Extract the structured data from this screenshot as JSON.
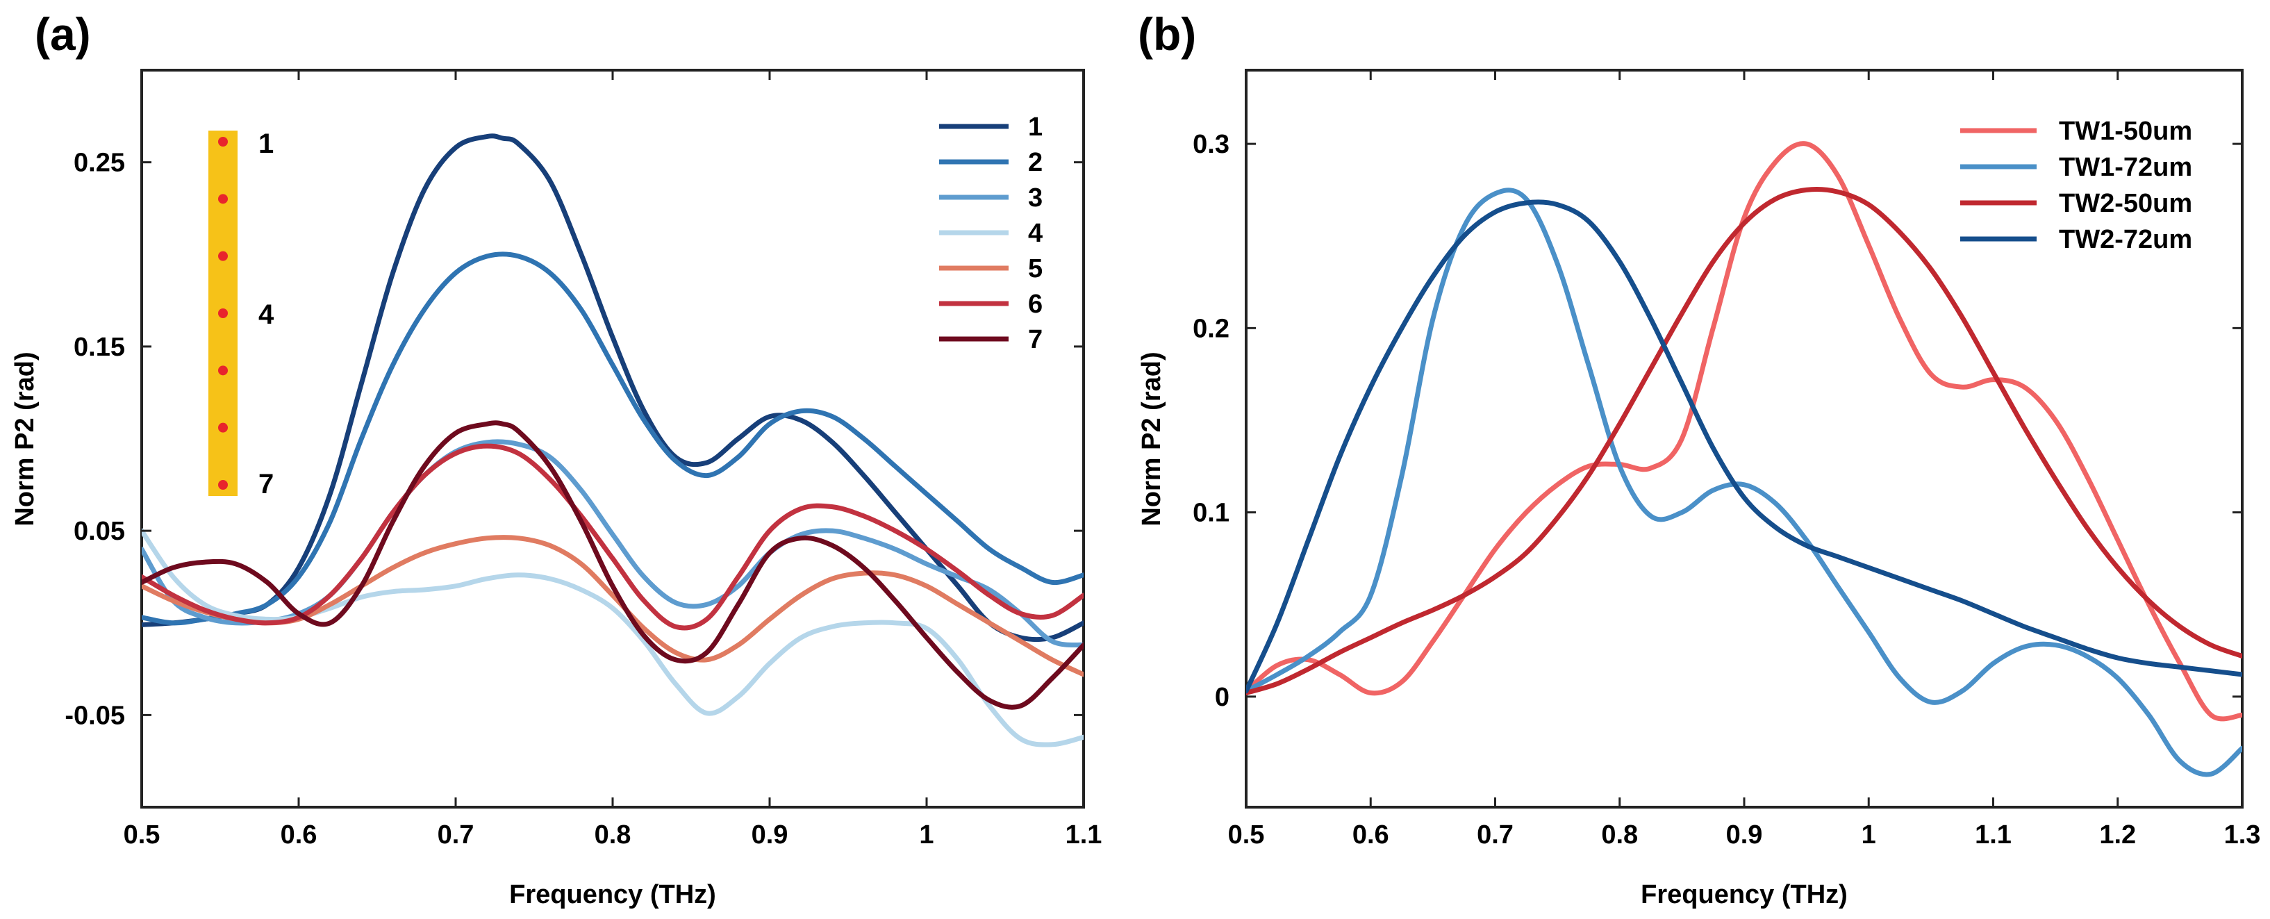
{
  "panels": [
    {
      "label": "(a)"
    },
    {
      "label": "(b)"
    }
  ],
  "chart_data": [
    {
      "type": "line",
      "xlabel": "Frequency (THz)",
      "ylabel": "Norm P2 (rad)",
      "xlim": [
        0.5,
        1.1
      ],
      "ylim": [
        -0.1,
        0.3
      ],
      "xticks": [
        "0.5",
        "0.6",
        "0.7",
        "0.8",
        "0.9",
        "1",
        "1.1"
      ],
      "yticks": [
        "-0.05",
        "0.05",
        "0.15",
        "0.25"
      ],
      "legend_position": "top-right",
      "inset": {
        "description_color": "#F6C218",
        "dot_color": "#E8242C",
        "dot_count": 7,
        "labels": [
          "1",
          "4",
          "7"
        ]
      },
      "series": [
        {
          "name": "1",
          "color": "#173F79",
          "x": [
            0.5,
            0.52,
            0.54,
            0.56,
            0.58,
            0.6,
            0.62,
            0.64,
            0.66,
            0.68,
            0.7,
            0.72,
            0.73,
            0.74,
            0.76,
            0.78,
            0.8,
            0.82,
            0.84,
            0.86,
            0.88,
            0.9,
            0.92,
            0.94,
            0.96,
            0.98,
            1.0,
            1.02,
            1.04,
            1.06,
            1.08,
            1.1
          ],
          "y": [
            -0.001,
            0.0,
            0.002,
            0.005,
            0.01,
            0.03,
            0.07,
            0.13,
            0.19,
            0.235,
            0.258,
            0.264,
            0.263,
            0.26,
            0.24,
            0.2,
            0.155,
            0.115,
            0.09,
            0.087,
            0.1,
            0.112,
            0.11,
            0.098,
            0.08,
            0.06,
            0.04,
            0.02,
            0.0,
            -0.008,
            -0.008,
            0.0
          ]
        },
        {
          "name": "2",
          "color": "#2F74B2",
          "x": [
            0.5,
            0.52,
            0.54,
            0.56,
            0.58,
            0.6,
            0.62,
            0.64,
            0.66,
            0.68,
            0.7,
            0.72,
            0.74,
            0.76,
            0.78,
            0.8,
            0.82,
            0.84,
            0.86,
            0.88,
            0.9,
            0.92,
            0.94,
            0.96,
            0.98,
            1.0,
            1.02,
            1.04,
            1.06,
            1.08,
            1.1
          ],
          "y": [
            0.003,
            0.0,
            0.002,
            0.005,
            0.01,
            0.025,
            0.055,
            0.1,
            0.14,
            0.17,
            0.19,
            0.199,
            0.199,
            0.19,
            0.17,
            0.14,
            0.11,
            0.088,
            0.08,
            0.09,
            0.108,
            0.115,
            0.112,
            0.1,
            0.085,
            0.07,
            0.055,
            0.04,
            0.03,
            0.022,
            0.026
          ]
        },
        {
          "name": "3",
          "color": "#5E9CCF",
          "x": [
            0.5,
            0.52,
            0.54,
            0.56,
            0.58,
            0.6,
            0.62,
            0.64,
            0.66,
            0.68,
            0.7,
            0.72,
            0.74,
            0.76,
            0.78,
            0.8,
            0.82,
            0.84,
            0.86,
            0.88,
            0.9,
            0.92,
            0.94,
            0.96,
            0.98,
            1.0,
            1.02,
            1.04,
            1.06,
            1.08,
            1.1
          ],
          "y": [
            0.04,
            0.012,
            0.003,
            0.0,
            0.001,
            0.005,
            0.015,
            0.035,
            0.06,
            0.08,
            0.093,
            0.098,
            0.097,
            0.09,
            0.072,
            0.048,
            0.025,
            0.011,
            0.01,
            0.02,
            0.038,
            0.048,
            0.05,
            0.046,
            0.04,
            0.032,
            0.025,
            0.018,
            0.005,
            -0.01,
            -0.012
          ]
        },
        {
          "name": "4",
          "color": "#B5D6EA",
          "x": [
            0.5,
            0.52,
            0.54,
            0.56,
            0.58,
            0.6,
            0.62,
            0.64,
            0.66,
            0.68,
            0.7,
            0.72,
            0.74,
            0.76,
            0.78,
            0.8,
            0.82,
            0.84,
            0.86,
            0.88,
            0.9,
            0.92,
            0.94,
            0.96,
            0.98,
            1.0,
            1.02,
            1.04,
            1.06,
            1.08,
            1.1
          ],
          "y": [
            0.05,
            0.025,
            0.01,
            0.004,
            0.002,
            0.003,
            0.008,
            0.014,
            0.017,
            0.018,
            0.02,
            0.024,
            0.026,
            0.024,
            0.018,
            0.008,
            -0.01,
            -0.033,
            -0.049,
            -0.04,
            -0.022,
            -0.008,
            -0.002,
            0.0,
            0.0,
            -0.003,
            -0.02,
            -0.045,
            -0.063,
            -0.066,
            -0.062
          ]
        },
        {
          "name": "5",
          "color": "#E07B61",
          "x": [
            0.5,
            0.52,
            0.54,
            0.56,
            0.58,
            0.6,
            0.62,
            0.64,
            0.66,
            0.68,
            0.7,
            0.72,
            0.74,
            0.76,
            0.78,
            0.8,
            0.82,
            0.84,
            0.86,
            0.88,
            0.9,
            0.92,
            0.94,
            0.96,
            0.98,
            1.0,
            1.02,
            1.04,
            1.06,
            1.08,
            1.1
          ],
          "y": [
            0.02,
            0.012,
            0.006,
            0.002,
            0.0,
            0.002,
            0.01,
            0.02,
            0.03,
            0.038,
            0.043,
            0.046,
            0.046,
            0.042,
            0.032,
            0.015,
            -0.003,
            -0.016,
            -0.02,
            -0.012,
            0.002,
            0.015,
            0.024,
            0.027,
            0.026,
            0.02,
            0.01,
            0.0,
            -0.01,
            -0.02,
            -0.028
          ]
        },
        {
          "name": "6",
          "color": "#C23240",
          "x": [
            0.5,
            0.52,
            0.54,
            0.56,
            0.58,
            0.6,
            0.62,
            0.64,
            0.66,
            0.68,
            0.7,
            0.72,
            0.74,
            0.76,
            0.78,
            0.8,
            0.82,
            0.84,
            0.86,
            0.88,
            0.9,
            0.92,
            0.94,
            0.96,
            0.98,
            1.0,
            1.02,
            1.04,
            1.06,
            1.08,
            1.1
          ],
          "y": [
            0.025,
            0.015,
            0.007,
            0.002,
            0.0,
            0.003,
            0.015,
            0.035,
            0.06,
            0.08,
            0.092,
            0.096,
            0.092,
            0.078,
            0.058,
            0.035,
            0.012,
            -0.002,
            0.002,
            0.025,
            0.05,
            0.062,
            0.063,
            0.058,
            0.05,
            0.04,
            0.028,
            0.015,
            0.005,
            0.004,
            0.015
          ]
        },
        {
          "name": "7",
          "color": "#6E0A1E",
          "x": [
            0.5,
            0.52,
            0.54,
            0.56,
            0.58,
            0.6,
            0.62,
            0.64,
            0.66,
            0.68,
            0.7,
            0.72,
            0.73,
            0.74,
            0.76,
            0.78,
            0.8,
            0.82,
            0.84,
            0.86,
            0.88,
            0.9,
            0.92,
            0.94,
            0.96,
            0.98,
            1.0,
            1.02,
            1.04,
            1.06,
            1.08,
            1.1
          ],
          "y": [
            0.022,
            0.03,
            0.033,
            0.032,
            0.022,
            0.005,
            0.0,
            0.02,
            0.055,
            0.085,
            0.103,
            0.108,
            0.108,
            0.104,
            0.085,
            0.055,
            0.02,
            -0.007,
            -0.02,
            -0.016,
            0.01,
            0.038,
            0.046,
            0.042,
            0.03,
            0.012,
            -0.008,
            -0.027,
            -0.042,
            -0.045,
            -0.03,
            -0.012
          ]
        }
      ]
    },
    {
      "type": "line",
      "xlabel": "Frequency (THz)",
      "ylabel": "Norm P2 (rad)",
      "xlim": [
        0.5,
        1.3
      ],
      "ylim": [
        -0.06,
        0.34
      ],
      "xticks": [
        "0.5",
        "0.6",
        "0.7",
        "0.8",
        "0.9",
        "1",
        "1.1",
        "1.2",
        "1.3"
      ],
      "yticks": [
        "0",
        "0.1",
        "0.2",
        "0.3"
      ],
      "legend_position": "top-right",
      "series": [
        {
          "name": "TW1-50um",
          "color": "#F06464",
          "x": [
            0.5,
            0.525,
            0.55,
            0.575,
            0.6,
            0.625,
            0.65,
            0.675,
            0.7,
            0.725,
            0.75,
            0.775,
            0.8,
            0.825,
            0.85,
            0.875,
            0.9,
            0.925,
            0.95,
            0.975,
            1.0,
            1.025,
            1.05,
            1.075,
            1.1,
            1.125,
            1.15,
            1.175,
            1.2,
            1.225,
            1.25,
            1.275,
            1.3
          ],
          "y": [
            0.003,
            0.017,
            0.02,
            0.012,
            0.002,
            0.008,
            0.03,
            0.055,
            0.08,
            0.1,
            0.115,
            0.125,
            0.126,
            0.124,
            0.14,
            0.2,
            0.26,
            0.29,
            0.3,
            0.283,
            0.245,
            0.205,
            0.175,
            0.168,
            0.172,
            0.168,
            0.15,
            0.12,
            0.085,
            0.05,
            0.018,
            -0.01,
            -0.01
          ]
        },
        {
          "name": "TW1-72um",
          "color": "#4A90C8",
          "x": [
            0.5,
            0.525,
            0.55,
            0.575,
            0.6,
            0.625,
            0.65,
            0.675,
            0.7,
            0.725,
            0.75,
            0.775,
            0.8,
            0.825,
            0.85,
            0.875,
            0.9,
            0.925,
            0.95,
            0.975,
            1.0,
            1.025,
            1.05,
            1.075,
            1.1,
            1.125,
            1.15,
            1.175,
            1.2,
            1.225,
            1.25,
            1.275,
            1.3
          ],
          "y": [
            0.003,
            0.012,
            0.022,
            0.035,
            0.055,
            0.12,
            0.205,
            0.255,
            0.273,
            0.27,
            0.235,
            0.18,
            0.125,
            0.098,
            0.1,
            0.112,
            0.115,
            0.105,
            0.085,
            0.06,
            0.035,
            0.01,
            -0.003,
            0.003,
            0.018,
            0.027,
            0.028,
            0.022,
            0.01,
            -0.01,
            -0.035,
            -0.042,
            -0.028
          ]
        },
        {
          "name": "TW2-50um",
          "color": "#C0282F",
          "x": [
            0.5,
            0.525,
            0.55,
            0.575,
            0.6,
            0.625,
            0.65,
            0.675,
            0.7,
            0.725,
            0.75,
            0.775,
            0.8,
            0.825,
            0.85,
            0.875,
            0.9,
            0.925,
            0.95,
            0.975,
            1.0,
            1.025,
            1.05,
            1.075,
            1.1,
            1.125,
            1.15,
            1.175,
            1.2,
            1.225,
            1.25,
            1.275,
            1.3
          ],
          "y": [
            0.002,
            0.007,
            0.015,
            0.024,
            0.032,
            0.04,
            0.047,
            0.055,
            0.065,
            0.078,
            0.097,
            0.12,
            0.148,
            0.178,
            0.208,
            0.236,
            0.257,
            0.27,
            0.275,
            0.274,
            0.267,
            0.252,
            0.232,
            0.206,
            0.176,
            0.146,
            0.118,
            0.092,
            0.07,
            0.052,
            0.038,
            0.028,
            0.022
          ]
        },
        {
          "name": "TW2-72um",
          "color": "#154E8C",
          "x": [
            0.5,
            0.525,
            0.55,
            0.575,
            0.6,
            0.625,
            0.65,
            0.675,
            0.7,
            0.725,
            0.75,
            0.775,
            0.8,
            0.825,
            0.85,
            0.875,
            0.9,
            0.925,
            0.95,
            0.975,
            1.0,
            1.025,
            1.05,
            1.075,
            1.1,
            1.125,
            1.15,
            1.175,
            1.2,
            1.225,
            1.25,
            1.275,
            1.3
          ],
          "y": [
            0.003,
            0.04,
            0.085,
            0.13,
            0.168,
            0.2,
            0.228,
            0.25,
            0.263,
            0.268,
            0.267,
            0.258,
            0.236,
            0.205,
            0.17,
            0.135,
            0.108,
            0.092,
            0.082,
            0.076,
            0.07,
            0.064,
            0.058,
            0.052,
            0.045,
            0.038,
            0.032,
            0.026,
            0.021,
            0.018,
            0.016,
            0.014,
            0.012
          ]
        }
      ]
    }
  ]
}
